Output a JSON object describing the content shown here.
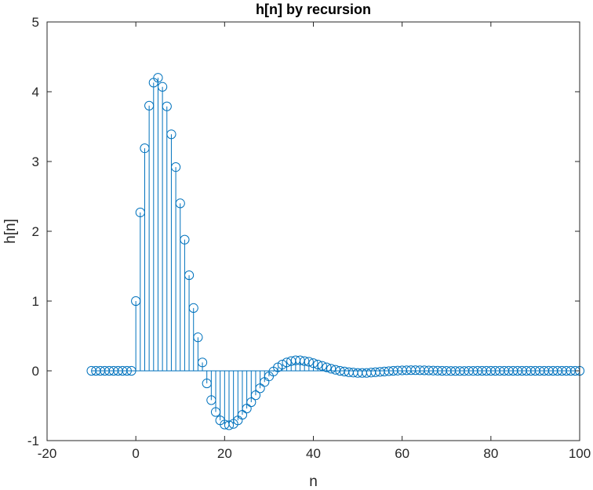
{
  "chart_data": {
    "type": "stem",
    "title": "h[n] by recursion",
    "xlabel": "n",
    "ylabel": "h[n]",
    "xlim": [
      -20,
      100
    ],
    "ylim": [
      -1,
      5
    ],
    "xticks": [
      -20,
      0,
      20,
      40,
      60,
      80,
      100
    ],
    "yticks": [
      -1,
      0,
      1,
      2,
      3,
      4,
      5
    ],
    "xtick_labels": [
      "-20",
      "0",
      "20",
      "40",
      "60",
      "80",
      "100"
    ],
    "ytick_labels": [
      "-1",
      "0",
      "1",
      "2",
      "3",
      "4",
      "5"
    ],
    "grid": false,
    "box": true,
    "baseline": 0,
    "marker": "circle",
    "colors": {
      "series": "#0072BD",
      "axes": "#262626",
      "background": "#ffffff"
    },
    "series": [
      {
        "x_start": -10,
        "x_step": 1,
        "values": [
          0,
          0,
          0,
          0,
          0,
          0,
          0,
          0,
          0,
          0,
          1.0,
          2.27,
          3.19,
          3.8,
          4.13,
          4.2,
          4.07,
          3.79,
          3.39,
          2.92,
          2.4,
          1.88,
          1.37,
          0.9,
          0.48,
          0.12,
          -0.18,
          -0.42,
          -0.59,
          -0.71,
          -0.77,
          -0.78,
          -0.76,
          -0.71,
          -0.63,
          -0.54,
          -0.45,
          -0.35,
          -0.25,
          -0.16,
          -0.08,
          -0.01,
          0.05,
          0.09,
          0.12,
          0.14,
          0.15,
          0.15,
          0.14,
          0.13,
          0.11,
          0.09,
          0.07,
          0.05,
          0.03,
          0.015,
          0.0,
          -0.01,
          -0.02,
          -0.025,
          -0.03,
          -0.03,
          -0.03,
          -0.025,
          -0.02,
          -0.015,
          -0.01,
          -0.005,
          0,
          0.003,
          0.006,
          0.008,
          0.009,
          0.009,
          0.008,
          0.007,
          0.005,
          0.003,
          0.002,
          0,
          -0.001,
          -0.002,
          -0.002,
          -0.002,
          -0.002,
          -0.001,
          -0.001,
          0,
          0,
          0,
          0,
          0,
          0,
          0,
          0,
          0,
          0,
          0,
          0,
          0,
          0,
          0,
          0,
          0,
          0,
          0,
          0,
          0,
          0,
          0,
          0
        ]
      }
    ]
  }
}
